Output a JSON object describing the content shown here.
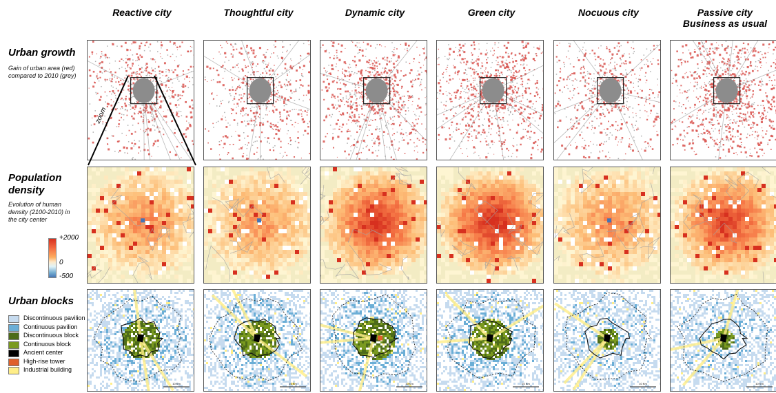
{
  "scenarios": [
    {
      "title_line1": "Reactive city",
      "title_line2": ""
    },
    {
      "title_line1": "Thoughtful city",
      "title_line2": ""
    },
    {
      "title_line1": "Dynamic city",
      "title_line2": ""
    },
    {
      "title_line1": "Green city",
      "title_line2": ""
    },
    {
      "title_line1": "Nocuous city",
      "title_line2": ""
    },
    {
      "title_line1": "Passive city",
      "title_line2": "Business as usual"
    }
  ],
  "rows": {
    "growth": {
      "title": "Urban growth",
      "desc_line1": "Gain of urban area (red)",
      "desc_line2": "compared to 2010 (grey)",
      "zoom_label": "zoom",
      "growth_color": "#d9534f",
      "base_color": "#8c8c8c",
      "growth_intensity": [
        0.35,
        0.3,
        0.6,
        0.7,
        0.3,
        0.85
      ]
    },
    "density": {
      "title_line1": "Population",
      "title_line2": "density",
      "desc_line1": "Evolution of human",
      "desc_line2": "density (2100-2010) in",
      "desc_line3": "the city center",
      "colorbar_max": "+2000",
      "colorbar_mid": "0",
      "colorbar_min": "-500",
      "center_intensity": [
        0.5,
        0.45,
        0.9,
        0.95,
        0.5,
        0.85
      ]
    },
    "blocks": {
      "title": "Urban blocks",
      "scalebar_label": "10 Km",
      "legend": [
        {
          "label": "Discontinuous pavilion",
          "color": "#c6dbef"
        },
        {
          "label": "Continuous pavilion",
          "color": "#6baed6"
        },
        {
          "label": "Discontinuous block",
          "color": "#4d6b1a"
        },
        {
          "label": "Continuous block",
          "color": "#7a9a1f"
        },
        {
          "label": "Ancient center",
          "color": "#000000"
        },
        {
          "label": "High-rise tower",
          "color": "#e0602a"
        },
        {
          "label": "Industrial building",
          "color": "#ffee88"
        }
      ]
    }
  }
}
